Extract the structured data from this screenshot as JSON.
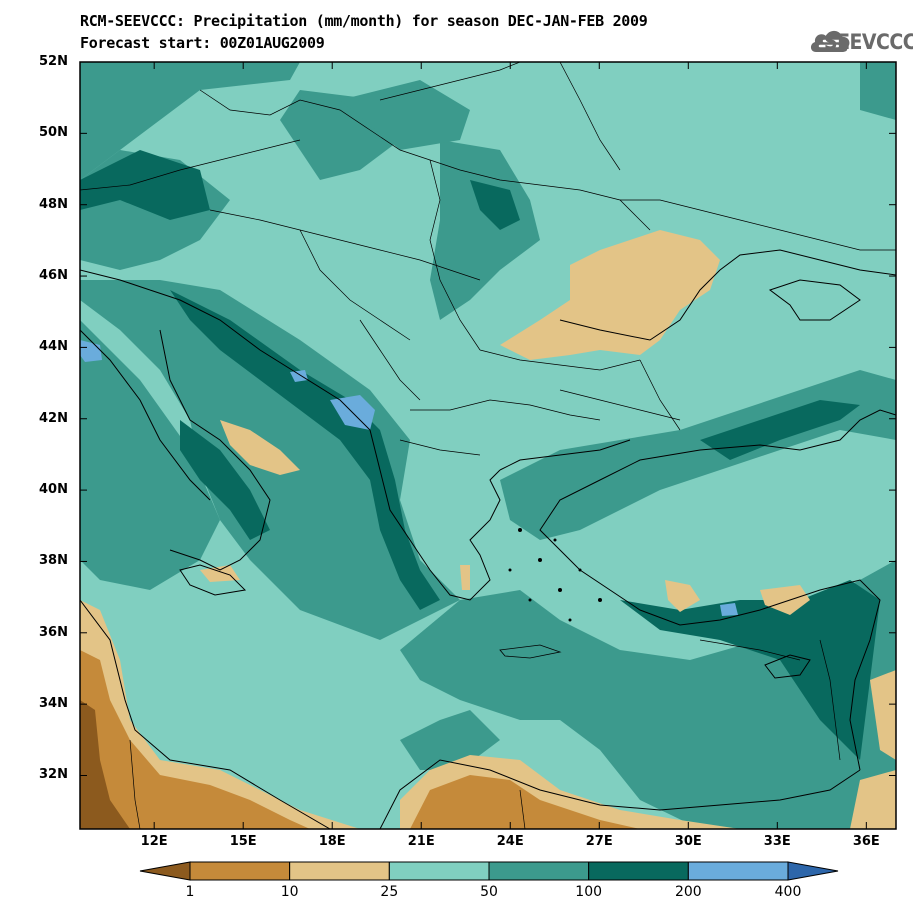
{
  "title": {
    "line1": "RCM-SEEVCCC: Precipitation (mm/month) for season DEC-JAN-FEB 2009",
    "line2": "Forecast start: 00Z01AUG2009"
  },
  "logo": {
    "text": "SEEVCCC",
    "icon": "cloud-icon"
  },
  "map": {
    "lon_range": [
      9.5,
      37.0
    ],
    "lat_range": [
      30.5,
      52.0
    ],
    "lat_ticks": [
      {
        "label": "52N"
      },
      {
        "label": "50N"
      },
      {
        "label": "48N"
      },
      {
        "label": "46N"
      },
      {
        "label": "44N"
      },
      {
        "label": "42N"
      },
      {
        "label": "40N"
      },
      {
        "label": "38N"
      },
      {
        "label": "36N"
      },
      {
        "label": "34N"
      },
      {
        "label": "32N"
      }
    ],
    "lon_ticks": [
      {
        "label": "12E"
      },
      {
        "label": "15E"
      },
      {
        "label": "18E"
      },
      {
        "label": "21E"
      },
      {
        "label": "24E"
      },
      {
        "label": "27E"
      },
      {
        "label": "30E"
      },
      {
        "label": "33E"
      },
      {
        "label": "36E"
      }
    ]
  },
  "colorbar": {
    "levels": [
      "1",
      "10",
      "25",
      "50",
      "100",
      "200",
      "400"
    ],
    "colors": [
      "#8c5a1e",
      "#c58a3a",
      "#e3c487",
      "#80cfc0",
      "#3c9a8d",
      "#08695e",
      "#6aacdc",
      "#2d66aa"
    ]
  }
}
